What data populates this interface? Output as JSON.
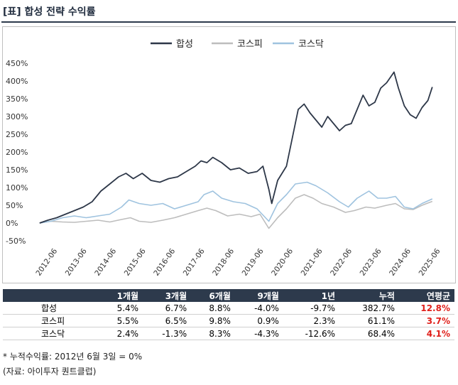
{
  "title": "[표] 합성 전략 수익률",
  "colors": {
    "합성": "#2d3748",
    "코스피": "#bdbdbd",
    "코스닥": "#9fc3df",
    "header_bg": "#2d3a4c",
    "highlight": "#e0201b"
  },
  "chart_data": {
    "type": "line",
    "legend_position": "top-center",
    "y_ticks": [
      "450%",
      "400%",
      "350%",
      "300%",
      "250%",
      "200%",
      "150%",
      "100%",
      "50%",
      "0%",
      "-50%"
    ],
    "ylim": [
      -50,
      450
    ],
    "x_ticks": [
      "2012-06",
      "2013-06",
      "2014-06",
      "2015-06",
      "2016-06",
      "2017-06",
      "2018-06",
      "2019-06",
      "2020-06",
      "2021-06",
      "2022-06",
      "2023-06",
      "2024-06",
      "2025-06"
    ],
    "xlim": [
      2012.4,
      2025.9
    ],
    "series": [
      {
        "name": "합성",
        "points": [
          [
            2012.42,
            0
          ],
          [
            2012.7,
            8
          ],
          [
            2013.0,
            15
          ],
          [
            2013.3,
            25
          ],
          [
            2013.6,
            35
          ],
          [
            2013.9,
            45
          ],
          [
            2014.2,
            60
          ],
          [
            2014.5,
            90
          ],
          [
            2014.8,
            110
          ],
          [
            2015.1,
            130
          ],
          [
            2015.35,
            140
          ],
          [
            2015.6,
            125
          ],
          [
            2015.9,
            140
          ],
          [
            2016.2,
            120
          ],
          [
            2016.5,
            115
          ],
          [
            2016.8,
            125
          ],
          [
            2017.1,
            130
          ],
          [
            2017.4,
            145
          ],
          [
            2017.7,
            160
          ],
          [
            2017.9,
            175
          ],
          [
            2018.1,
            170
          ],
          [
            2018.3,
            185
          ],
          [
            2018.6,
            170
          ],
          [
            2018.9,
            150
          ],
          [
            2019.2,
            155
          ],
          [
            2019.5,
            140
          ],
          [
            2019.8,
            145
          ],
          [
            2020.0,
            160
          ],
          [
            2020.2,
            95
          ],
          [
            2020.3,
            55
          ],
          [
            2020.5,
            120
          ],
          [
            2020.8,
            160
          ],
          [
            2021.0,
            240
          ],
          [
            2021.2,
            320
          ],
          [
            2021.4,
            335
          ],
          [
            2021.6,
            310
          ],
          [
            2021.8,
            290
          ],
          [
            2022.0,
            270
          ],
          [
            2022.2,
            300
          ],
          [
            2022.4,
            280
          ],
          [
            2022.6,
            260
          ],
          [
            2022.8,
            275
          ],
          [
            2023.0,
            280
          ],
          [
            2023.2,
            320
          ],
          [
            2023.4,
            360
          ],
          [
            2023.6,
            330
          ],
          [
            2023.8,
            340
          ],
          [
            2024.0,
            380
          ],
          [
            2024.2,
            395
          ],
          [
            2024.45,
            425
          ],
          [
            2024.6,
            380
          ],
          [
            2024.8,
            330
          ],
          [
            2025.0,
            305
          ],
          [
            2025.2,
            295
          ],
          [
            2025.4,
            325
          ],
          [
            2025.6,
            345
          ],
          [
            2025.75,
            383
          ]
        ]
      },
      {
        "name": "코스피",
        "points": [
          [
            2012.42,
            0
          ],
          [
            2012.8,
            5
          ],
          [
            2013.2,
            3
          ],
          [
            2013.6,
            2
          ],
          [
            2014.0,
            5
          ],
          [
            2014.4,
            8
          ],
          [
            2014.8,
            3
          ],
          [
            2015.2,
            10
          ],
          [
            2015.5,
            15
          ],
          [
            2015.8,
            5
          ],
          [
            2016.2,
            2
          ],
          [
            2016.6,
            8
          ],
          [
            2017.0,
            15
          ],
          [
            2017.4,
            25
          ],
          [
            2017.8,
            35
          ],
          [
            2018.1,
            42
          ],
          [
            2018.4,
            35
          ],
          [
            2018.8,
            20
          ],
          [
            2019.2,
            25
          ],
          [
            2019.6,
            18
          ],
          [
            2019.9,
            25
          ],
          [
            2020.2,
            -15
          ],
          [
            2020.5,
            15
          ],
          [
            2020.8,
            40
          ],
          [
            2021.1,
            70
          ],
          [
            2021.4,
            80
          ],
          [
            2021.7,
            70
          ],
          [
            2022.0,
            55
          ],
          [
            2022.4,
            45
          ],
          [
            2022.8,
            30
          ],
          [
            2023.1,
            35
          ],
          [
            2023.5,
            45
          ],
          [
            2023.8,
            42
          ],
          [
            2024.2,
            50
          ],
          [
            2024.5,
            55
          ],
          [
            2024.8,
            40
          ],
          [
            2025.1,
            38
          ],
          [
            2025.4,
            50
          ],
          [
            2025.75,
            61
          ]
        ]
      },
      {
        "name": "코스닥",
        "points": [
          [
            2012.42,
            0
          ],
          [
            2012.8,
            5
          ],
          [
            2013.2,
            15
          ],
          [
            2013.6,
            20
          ],
          [
            2014.0,
            15
          ],
          [
            2014.4,
            20
          ],
          [
            2014.8,
            25
          ],
          [
            2015.2,
            45
          ],
          [
            2015.45,
            65
          ],
          [
            2015.8,
            55
          ],
          [
            2016.2,
            50
          ],
          [
            2016.6,
            55
          ],
          [
            2017.0,
            40
          ],
          [
            2017.4,
            50
          ],
          [
            2017.8,
            60
          ],
          [
            2018.0,
            80
          ],
          [
            2018.3,
            90
          ],
          [
            2018.6,
            70
          ],
          [
            2019.0,
            60
          ],
          [
            2019.4,
            55
          ],
          [
            2019.8,
            40
          ],
          [
            2020.2,
            5
          ],
          [
            2020.5,
            55
          ],
          [
            2020.8,
            80
          ],
          [
            2021.1,
            110
          ],
          [
            2021.5,
            115
          ],
          [
            2021.8,
            105
          ],
          [
            2022.2,
            85
          ],
          [
            2022.6,
            60
          ],
          [
            2022.9,
            45
          ],
          [
            2023.2,
            70
          ],
          [
            2023.6,
            90
          ],
          [
            2023.9,
            70
          ],
          [
            2024.2,
            70
          ],
          [
            2024.5,
            75
          ],
          [
            2024.8,
            45
          ],
          [
            2025.1,
            40
          ],
          [
            2025.4,
            55
          ],
          [
            2025.75,
            68
          ]
        ]
      }
    ]
  },
  "table": {
    "headers": [
      "",
      "1개월",
      "3개월",
      "6개월",
      "9개월",
      "1년",
      "누적",
      "연평균"
    ],
    "rows": [
      [
        "합성",
        "5.4%",
        "6.7%",
        "8.8%",
        "-4.0%",
        "-9.7%",
        "382.7%",
        "12.8%"
      ],
      [
        "코스피",
        "5.5%",
        "6.5%",
        "9.8%",
        "0.9%",
        "2.3%",
        "61.1%",
        "3.7%"
      ],
      [
        "코스닥",
        "2.4%",
        "-1.3%",
        "8.3%",
        "-4.3%",
        "-12.6%",
        "68.4%",
        "4.1%"
      ]
    ]
  },
  "notes": {
    "cumulative": "* 누적수익률: 2012년 6월 3일 = 0%",
    "source": "(자료: 아이투자 퀀트클럽)"
  }
}
